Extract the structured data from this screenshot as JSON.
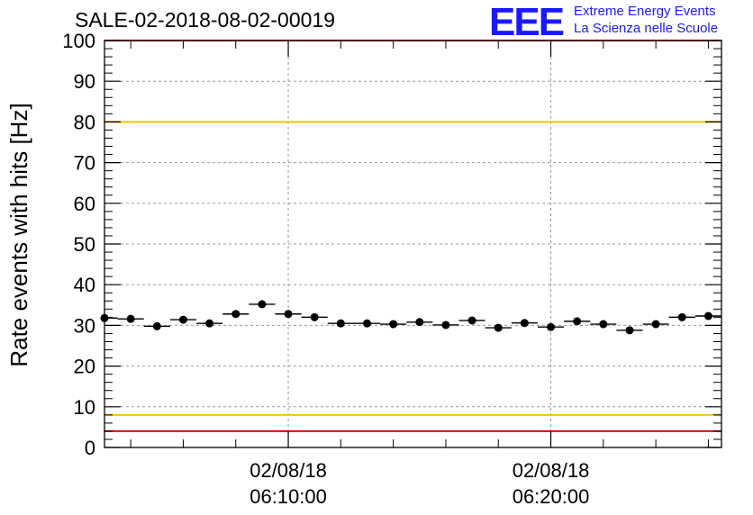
{
  "title": "SALE-02-2018-08-02-00019",
  "logo": {
    "mark": "EEE",
    "line1": "Extreme Energy Events",
    "line2": "La Scienza nelle Scuole"
  },
  "colors": {
    "red_line": "#e8000b",
    "yellow_line": "#f2c300",
    "logo": "#1a1aff",
    "grid": "#999999",
    "marker": "#000000"
  },
  "chart_data": {
    "type": "scatter",
    "title": "SALE-02-2018-08-02-00019",
    "xlabel": "",
    "ylabel": "Rate events with hits [Hz]",
    "ylim": [
      0,
      100
    ],
    "yticks": [
      0,
      10,
      20,
      30,
      40,
      50,
      60,
      70,
      80,
      90,
      100
    ],
    "x_unit": "minutes",
    "xlim_minutes": [
      6.0,
      29.5
    ],
    "xtick_labels": [
      {
        "minute": 13.0,
        "date": "02/08/18",
        "time": "06:10:00"
      },
      {
        "minute": 23.0,
        "date": "02/08/18",
        "time": "06:20:00"
      }
    ],
    "grid": true,
    "reference_lines": [
      {
        "y": 100,
        "color": "red"
      },
      {
        "y": 80,
        "color": "yellow"
      },
      {
        "y": 8,
        "color": "yellow"
      },
      {
        "y": 4,
        "color": "red"
      }
    ],
    "series": [
      {
        "x": [
          6.0,
          7.0,
          8.0,
          9.0,
          10.0,
          11.0,
          12.0,
          13.0,
          14.0,
          15.0,
          16.0,
          17.0,
          18.0,
          19.0,
          20.0,
          21.0,
          22.0,
          23.0,
          24.0,
          25.0,
          26.0,
          27.0,
          28.0,
          29.0
        ],
        "x_err": 0.5,
        "y": [
          31.8,
          31.6,
          29.8,
          31.4,
          30.5,
          32.8,
          35.2,
          32.8,
          32.0,
          30.5,
          30.5,
          30.3,
          30.8,
          30.1,
          31.2,
          29.4,
          30.6,
          29.6,
          31.0,
          30.3,
          28.8,
          30.3,
          32.0,
          32.3
        ]
      }
    ]
  }
}
